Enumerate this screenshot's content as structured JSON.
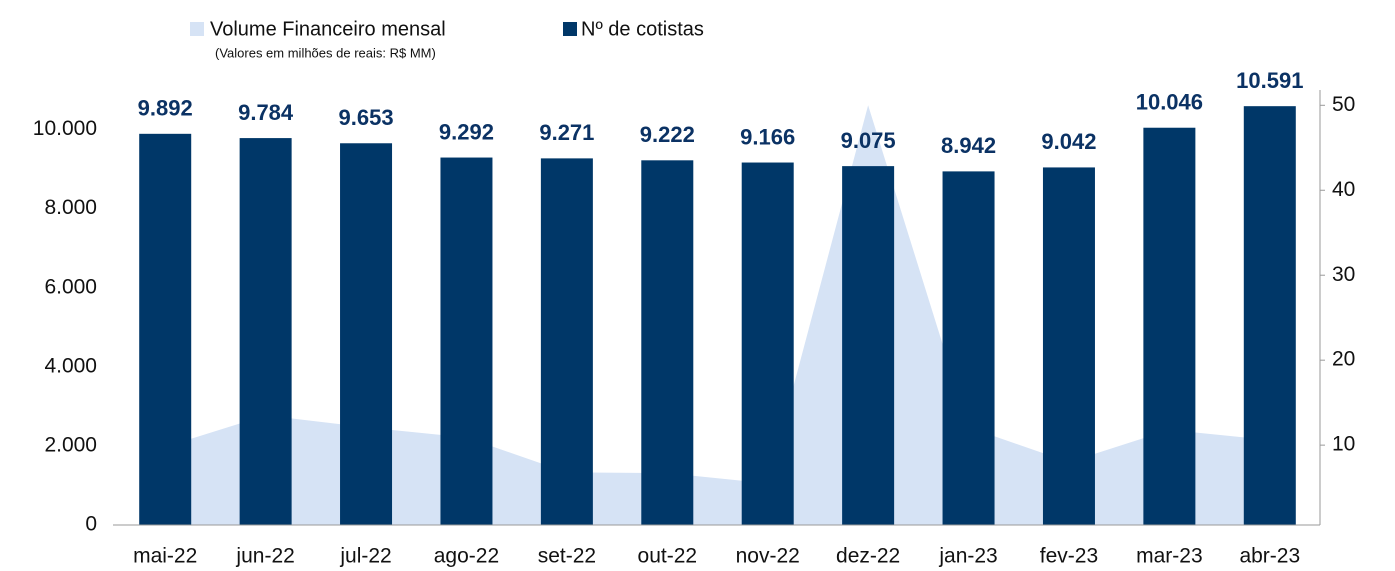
{
  "chart_data": {
    "type": "bar",
    "legend_subtitle": "(Valores em milhões de reais: R$ MM)",
    "categories": [
      "mai-22",
      "jun-22",
      "jul-22",
      "ago-22",
      "set-22",
      "out-22",
      "nov-22",
      "dez-22",
      "jan-23",
      "fev-23",
      "mar-23",
      "abr-23"
    ],
    "series": [
      {
        "name": "Volume Financeiro mensal",
        "type": "area",
        "axis": "y2",
        "color": "#d6e3f5",
        "values": [
          9.8,
          13.5,
          12.1,
          10.9,
          6.8,
          6.7,
          5.5,
          50,
          12.1,
          8,
          11.8,
          10.6
        ]
      },
      {
        "name": "Nº de cotistas",
        "type": "bar",
        "axis": "y",
        "color": "#003768",
        "values": [
          9892,
          9784,
          9653,
          9292,
          9271,
          9222,
          9166,
          9075,
          8942,
          9042,
          10046,
          10591
        ],
        "value_labels": [
          "9.892",
          "9.784",
          "9.653",
          "9.292",
          "9.271",
          "9.222",
          "9.166",
          "9.075",
          "8.942",
          "9.042",
          "10.046",
          "10.591"
        ]
      }
    ],
    "ylim": [
      0,
      11000
    ],
    "yticks": [
      0,
      {
        "value": 2000,
        "label": "2.000"
      },
      {
        "value": 4000,
        "label": "4.000"
      },
      {
        "value": 6000,
        "label": "6.000"
      },
      {
        "value": 8000,
        "label": "8.000"
      },
      {
        "value": 10000,
        "label": "10.000"
      }
    ],
    "y2lim": [
      0.6,
      51.8
    ],
    "y2ticks": [
      10,
      20,
      30,
      40,
      50
    ]
  }
}
